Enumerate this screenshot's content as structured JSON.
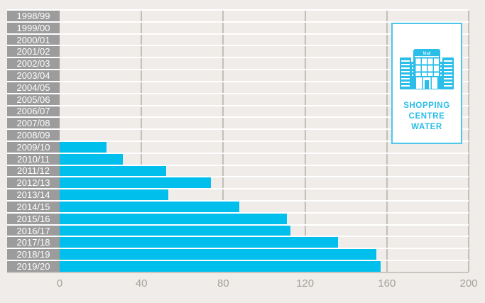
{
  "chart_data": {
    "type": "bar",
    "orientation": "horizontal",
    "title": "",
    "xlabel": "",
    "ylabel": "",
    "categories": [
      "1998/99",
      "1999/00",
      "2000/01",
      "2001/02",
      "2002/03",
      "2003/04",
      "2004/05",
      "2005/06",
      "2006/07",
      "2007/08",
      "2008/09",
      "2009/10",
      "2010/11",
      "2011/12",
      "2012/13",
      "2013/14",
      "2014/15",
      "2015/16",
      "2016/17",
      "2017/18",
      "2018/19",
      "2019/20"
    ],
    "values": [
      0,
      0,
      0,
      0,
      0,
      0,
      0,
      0,
      0,
      0,
      0,
      23,
      31,
      52,
      74,
      53,
      88,
      111,
      113,
      136,
      155,
      157
    ],
    "x_ticks": [
      0,
      40,
      80,
      120,
      160,
      200
    ],
    "xlim": [
      0,
      200
    ],
    "grid": "vertical-gridlines",
    "legend_position": "top-right"
  },
  "legend": {
    "icon": "shopping-mall-icon",
    "icon_sign_text": "Mall",
    "lines": [
      "SHOPPING",
      "CENTRE",
      "WATER"
    ]
  },
  "colors": {
    "bar": "#00bfec",
    "legend_accent": "#2abee9",
    "legend_border": "#4fc6ec",
    "label_box": "#9c9c9c",
    "label_text": "#ffffff",
    "axis_text": "#a4a19b",
    "gridline": "#c2bfb8",
    "background": "#efece9",
    "row_separator": "#ffffff"
  }
}
